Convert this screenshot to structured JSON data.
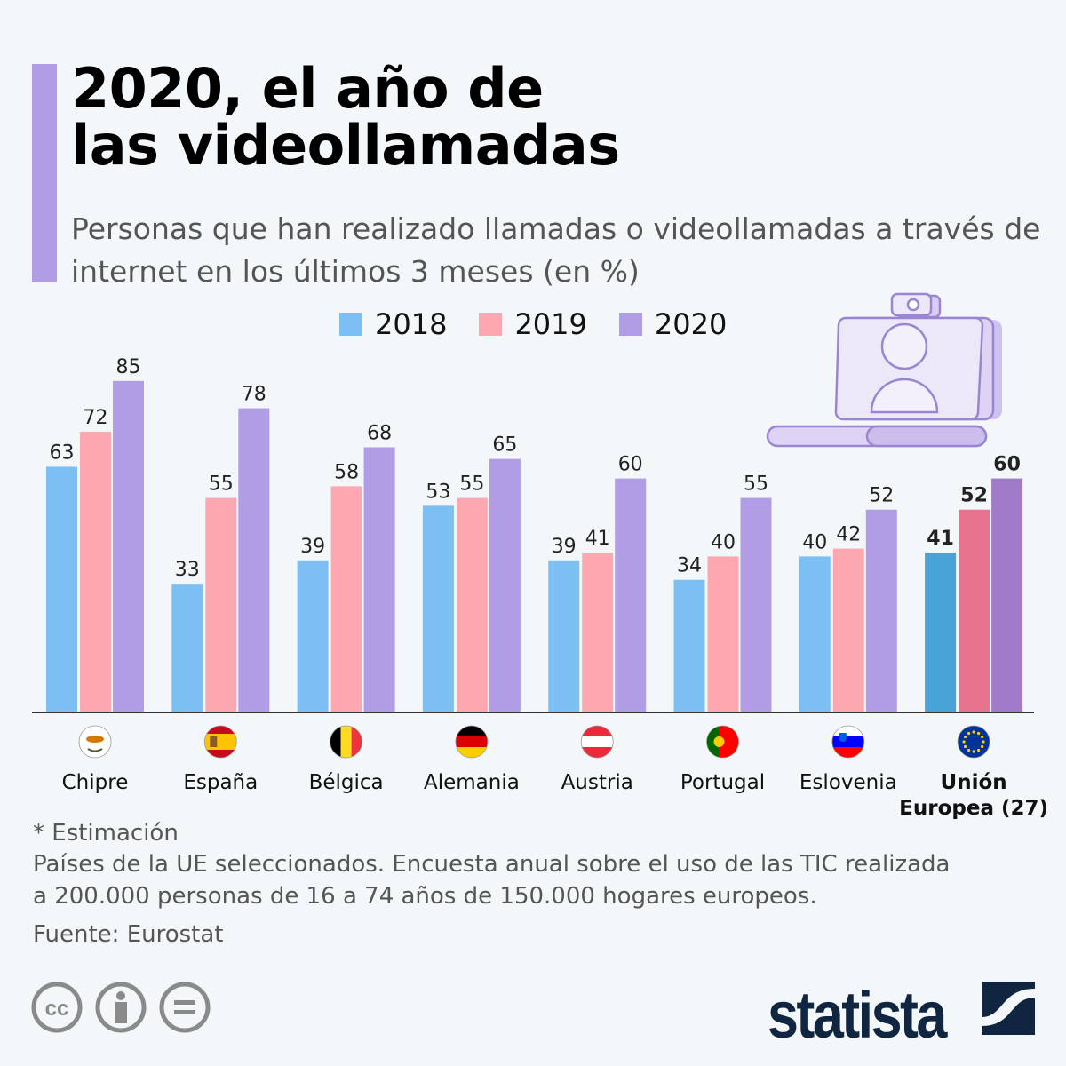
{
  "header": {
    "title_line1": "2020, el año de",
    "title_line2": "las videollamadas",
    "subtitle": "Personas que han realizado llamadas o videollamadas a través de internet en los últimos 3 meses (en %)"
  },
  "colors": {
    "accent": "#b09de6",
    "s2018": "#7cbff2",
    "s2019": "#fda8b0",
    "s2020": "#b09de6",
    "eu2018": "#4aa3d6",
    "eu2019": "#e8738f",
    "eu2020": "#a07cc8"
  },
  "chart_data": {
    "type": "bar",
    "title": "2020, el año de las videollamadas",
    "ylabel": "%",
    "ylim": [
      0,
      85
    ],
    "grid": false,
    "legend_position": "top",
    "categories": [
      "Chipre",
      "España",
      "Bélgica",
      "Alemania",
      "Austria",
      "Portugal",
      "Eslovenia",
      "Unión Europea (27)"
    ],
    "category_lines": [
      [
        "Chipre"
      ],
      [
        "España"
      ],
      [
        "Bélgica"
      ],
      [
        "Alemania"
      ],
      [
        "Austria"
      ],
      [
        "Portugal"
      ],
      [
        "Eslovenia"
      ],
      [
        "Unión",
        "Europea (27)"
      ]
    ],
    "flag_icons": [
      "cyprus-flag-icon",
      "spain-flag-icon",
      "belgium-flag-icon",
      "germany-flag-icon",
      "austria-flag-icon",
      "portugal-flag-icon",
      "slovenia-flag-icon",
      "eu-flag-icon"
    ],
    "series": [
      {
        "name": "2018",
        "values": [
          63,
          33,
          39,
          53,
          39,
          34,
          40,
          41
        ]
      },
      {
        "name": "2019",
        "values": [
          72,
          55,
          58,
          55,
          41,
          40,
          42,
          52
        ]
      },
      {
        "name": "2020",
        "values": [
          85,
          78,
          68,
          65,
          60,
          55,
          52,
          60
        ]
      }
    ],
    "annotations": [
      {
        "category": "Unión Europea (27)",
        "series": "2020",
        "text": "*"
      }
    ]
  },
  "footer": {
    "note": "* Estimación",
    "description_line1": "Países de la UE seleccionados. Encuesta anual sobre el uso de las TIC realizada",
    "description_line2": "a 200.000 personas de 16 a 74 años de 150.000 hogares europeos.",
    "source": "Fuente: Eurostat",
    "logo": "statista"
  }
}
